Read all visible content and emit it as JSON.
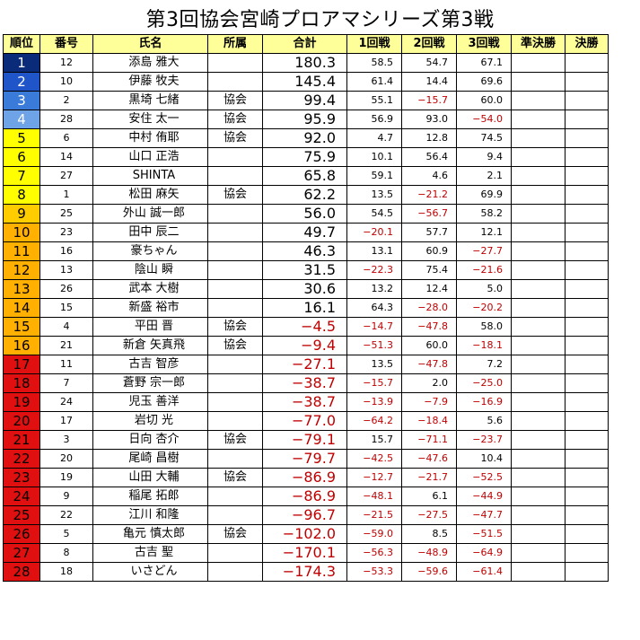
{
  "title": "第3回協会宮崎プロアマシリーズ第3戦",
  "headers": [
    "順位",
    "番号",
    "氏名",
    "所属",
    "合計",
    "1回戦",
    "2回戦",
    "3回戦",
    "準決勝",
    "決勝"
  ],
  "rows": [
    {
      "rank": "1",
      "no": "12",
      "name": "添島 雅大",
      "aff": "",
      "total": "180.3",
      "r1": "58.5",
      "r2": "54.7",
      "r3": "67.1"
    },
    {
      "rank": "2",
      "no": "10",
      "name": "伊藤 牧夫",
      "aff": "",
      "total": "145.4",
      "r1": "61.4",
      "r2": "14.4",
      "r3": "69.6"
    },
    {
      "rank": "3",
      "no": "2",
      "name": "黒埼 七緒",
      "aff": "協会",
      "total": "99.4",
      "r1": "55.1",
      "r2": "−15.7",
      "r3": "60.0"
    },
    {
      "rank": "4",
      "no": "28",
      "name": "安住 太一",
      "aff": "協会",
      "total": "95.9",
      "r1": "56.9",
      "r2": "93.0",
      "r3": "−54.0"
    },
    {
      "rank": "5",
      "no": "6",
      "name": "中村 侑耶",
      "aff": "協会",
      "total": "92.0",
      "r1": "4.7",
      "r2": "12.8",
      "r3": "74.5"
    },
    {
      "rank": "6",
      "no": "14",
      "name": "山口 正浩",
      "aff": "",
      "total": "75.9",
      "r1": "10.1",
      "r2": "56.4",
      "r3": "9.4"
    },
    {
      "rank": "7",
      "no": "27",
      "name": "SHINTA",
      "aff": "",
      "total": "65.8",
      "r1": "59.1",
      "r2": "4.6",
      "r3": "2.1"
    },
    {
      "rank": "8",
      "no": "1",
      "name": "松田 麻矢",
      "aff": "協会",
      "total": "62.2",
      "r1": "13.5",
      "r2": "−21.2",
      "r3": "69.9"
    },
    {
      "rank": "9",
      "no": "25",
      "name": "外山 誠一郎",
      "aff": "",
      "total": "56.0",
      "r1": "54.5",
      "r2": "−56.7",
      "r3": "58.2"
    },
    {
      "rank": "10",
      "no": "23",
      "name": "田中 辰二",
      "aff": "",
      "total": "49.7",
      "r1": "−20.1",
      "r2": "57.7",
      "r3": "12.1"
    },
    {
      "rank": "11",
      "no": "16",
      "name": "豪ちゃん",
      "aff": "",
      "total": "46.3",
      "r1": "13.1",
      "r2": "60.9",
      "r3": "−27.7"
    },
    {
      "rank": "12",
      "no": "13",
      "name": "陰山 瞬",
      "aff": "",
      "total": "31.5",
      "r1": "−22.3",
      "r2": "75.4",
      "r3": "−21.6"
    },
    {
      "rank": "13",
      "no": "26",
      "name": "武本 大樹",
      "aff": "",
      "total": "30.6",
      "r1": "13.2",
      "r2": "12.4",
      "r3": "5.0"
    },
    {
      "rank": "14",
      "no": "15",
      "name": "新盛 裕市",
      "aff": "",
      "total": "16.1",
      "r1": "64.3",
      "r2": "−28.0",
      "r3": "−20.2"
    },
    {
      "rank": "15",
      "no": "4",
      "name": "平田 晋",
      "aff": "協会",
      "total": "−4.5",
      "r1": "−14.7",
      "r2": "−47.8",
      "r3": "58.0"
    },
    {
      "rank": "16",
      "no": "21",
      "name": "新倉 矢真飛",
      "aff": "協会",
      "total": "−9.4",
      "r1": "−51.3",
      "r2": "60.0",
      "r3": "−18.1"
    },
    {
      "rank": "17",
      "no": "11",
      "name": "古吉 智彦",
      "aff": "",
      "total": "−27.1",
      "r1": "13.5",
      "r2": "−47.8",
      "r3": "7.2"
    },
    {
      "rank": "18",
      "no": "7",
      "name": "蒼野 宗一郎",
      "aff": "",
      "total": "−38.7",
      "r1": "−15.7",
      "r2": "2.0",
      "r3": "−25.0"
    },
    {
      "rank": "19",
      "no": "24",
      "name": "児玉 善洋",
      "aff": "",
      "total": "−38.7",
      "r1": "−13.9",
      "r2": "−7.9",
      "r3": "−16.9"
    },
    {
      "rank": "20",
      "no": "17",
      "name": "岩切 光",
      "aff": "",
      "total": "−77.0",
      "r1": "−64.2",
      "r2": "−18.4",
      "r3": "5.6"
    },
    {
      "rank": "21",
      "no": "3",
      "name": "日向 杏介",
      "aff": "協会",
      "total": "−79.1",
      "r1": "15.7",
      "r2": "−71.1",
      "r3": "−23.7"
    },
    {
      "rank": "22",
      "no": "20",
      "name": "尾崎 昌樹",
      "aff": "",
      "total": "−79.7",
      "r1": "−42.5",
      "r2": "−47.6",
      "r3": "10.4"
    },
    {
      "rank": "23",
      "no": "19",
      "name": "山田 大輔",
      "aff": "協会",
      "total": "−86.9",
      "r1": "−12.7",
      "r2": "−21.7",
      "r3": "−52.5"
    },
    {
      "rank": "24",
      "no": "9",
      "name": "稲尾 拓郎",
      "aff": "",
      "total": "−86.9",
      "r1": "−48.1",
      "r2": "6.1",
      "r3": "−44.9"
    },
    {
      "rank": "25",
      "no": "22",
      "name": "江川 和隆",
      "aff": "",
      "total": "−96.7",
      "r1": "−21.5",
      "r2": "−27.5",
      "r3": "−47.7"
    },
    {
      "rank": "26",
      "no": "5",
      "name": "亀元 慎太郎",
      "aff": "協会",
      "total": "−102.0",
      "r1": "−59.0",
      "r2": "8.5",
      "r3": "−51.5"
    },
    {
      "rank": "27",
      "no": "8",
      "name": "古吉 聖",
      "aff": "",
      "total": "−170.1",
      "r1": "−56.3",
      "r2": "−48.9",
      "r3": "−64.9"
    },
    {
      "rank": "28",
      "no": "18",
      "name": "いさどん",
      "aff": "",
      "total": "−174.3",
      "r1": "−53.3",
      "r2": "−59.6",
      "r3": "−61.4"
    }
  ],
  "colors": {
    "header_bg": "#ffff99",
    "negative_text": "#c00000",
    "rank_blue": "#1f55c8",
    "rank_yellow": "#ffff00",
    "rank_orange": "#ffb000",
    "rank_red": "#e01010",
    "cut_line_1": "#0e5fa6",
    "cut_line_2": "#ffe000",
    "cut_line_3": "#ef8f2a"
  }
}
